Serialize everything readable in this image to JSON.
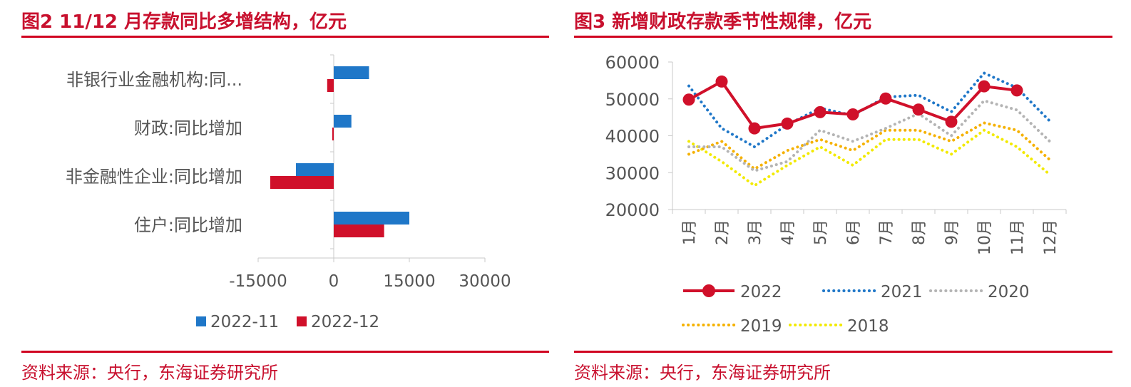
{
  "figures": [
    {
      "title": "图2  11/12 月存款同比多增结构，亿元",
      "source": "资料来源：央行，东海证券研究所"
    },
    {
      "title": "图3  新增财政存款季节性规律，亿元",
      "source": "资料来源：央行，东海证券研究所"
    }
  ],
  "colors": {
    "accent": "#c8102e",
    "rule": "#d00020"
  },
  "chart_data": [
    {
      "type": "bar",
      "orientation": "horizontal",
      "categories": [
        "非银行业金融机构:同...",
        "财政:同比增加",
        "非金融性企业:同比增加",
        "住户:同比增加"
      ],
      "series": [
        {
          "name": "2022-11",
          "color": "#1f77c8",
          "values": [
            7000,
            3500,
            -7500,
            15000
          ]
        },
        {
          "name": "2022-12",
          "color": "#d0102a",
          "values": [
            -1300,
            -300,
            -12600,
            10000
          ]
        }
      ],
      "xlim": [
        -15000,
        30000
      ],
      "xticks": [
        "-15000",
        "0",
        "15000",
        "30000"
      ],
      "xtick_values": [
        -15000,
        0,
        15000,
        30000
      ],
      "legend_position": "bottom"
    },
    {
      "type": "line",
      "categories": [
        "1月",
        "2月",
        "3月",
        "4月",
        "5月",
        "6月",
        "7月",
        "8月",
        "9月",
        "10月",
        "11月",
        "12月"
      ],
      "series": [
        {
          "name": "2022",
          "color": "#d0102a",
          "style": "solid-marker",
          "values": [
            49800,
            54700,
            42000,
            43300,
            46400,
            45800,
            50100,
            47100,
            43800,
            53400,
            52300,
            null
          ]
        },
        {
          "name": "2021",
          "color": "#1f77c8",
          "style": "dotted",
          "values": [
            53500,
            42000,
            37000,
            43000,
            47500,
            45500,
            50500,
            51000,
            46500,
            57000,
            53000,
            44000
          ]
        },
        {
          "name": "2020",
          "color": "#b4b4b4",
          "style": "dotted",
          "values": [
            37000,
            37000,
            30500,
            33000,
            41500,
            38500,
            42000,
            46000,
            40000,
            49500,
            47000,
            38500
          ]
        },
        {
          "name": "2019",
          "color": "#f5b100",
          "style": "dotted",
          "values": [
            35000,
            38500,
            31000,
            36000,
            39000,
            36000,
            41500,
            41500,
            38500,
            43500,
            41500,
            33500
          ]
        },
        {
          "name": "2018",
          "color": "#f2ea00",
          "style": "dotted",
          "values": [
            38500,
            33000,
            26500,
            32000,
            37000,
            32000,
            39000,
            39000,
            35000,
            41500,
            37000,
            29500
          ]
        }
      ],
      "ylim": [
        20000,
        60000
      ],
      "yticks": [
        "60000",
        "50000",
        "40000",
        "30000",
        "20000"
      ],
      "ytick_values": [
        60000,
        50000,
        40000,
        30000,
        20000
      ],
      "legend_position": "bottom"
    }
  ]
}
